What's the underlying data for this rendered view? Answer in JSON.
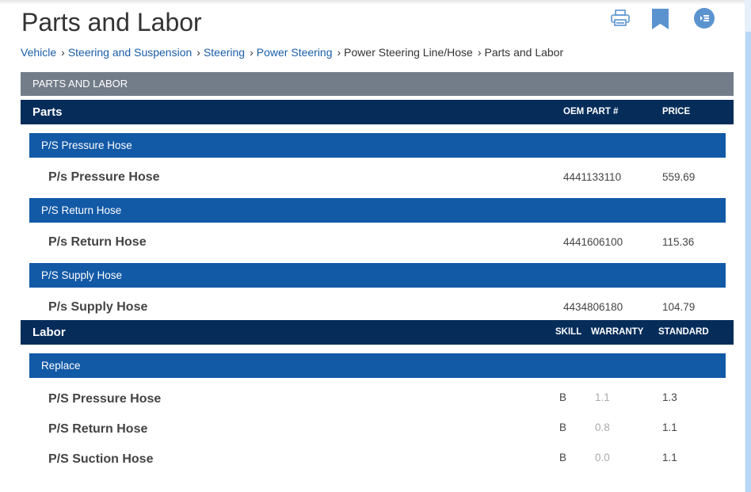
{
  "page": {
    "title": "Parts and Labor"
  },
  "toolbar": {
    "icons": [
      "print-icon",
      "bookmark-icon",
      "toc-icon"
    ],
    "accent": "#5b93cf"
  },
  "breadcrumb": [
    {
      "label": "Vehicle",
      "link": true
    },
    {
      "label": "Steering and Suspension",
      "link": true
    },
    {
      "label": "Steering",
      "link": true
    },
    {
      "label": "Power Steering",
      "link": true
    },
    {
      "label": "Power Steering Line/Hose",
      "link": false
    },
    {
      "label": "Parts and Labor",
      "link": false
    }
  ],
  "section_title": "PARTS AND LABOR",
  "parts": {
    "header": {
      "label": "Parts",
      "oem": "OEM PART #",
      "price": "PRICE"
    },
    "groups": [
      {
        "name": "P/S Pressure Hose",
        "item": "P/s Pressure Hose",
        "oem": "4441133110",
        "price": "559.69"
      },
      {
        "name": "P/S Return Hose",
        "item": "P/s Return Hose",
        "oem": "4441606100",
        "price": "115.36"
      },
      {
        "name": "P/S Supply Hose",
        "item": "P/s Supply Hose",
        "oem": "4434806180",
        "price": "104.79"
      }
    ]
  },
  "labor": {
    "header": {
      "label": "Labor",
      "skill": "SKILL",
      "warranty": "WARRANTY",
      "standard": "STANDARD"
    },
    "group": "Replace",
    "rows": [
      {
        "name": "P/S Pressure Hose",
        "skill": "B",
        "warranty": "1.1",
        "standard": "1.3"
      },
      {
        "name": "P/S Return Hose",
        "skill": "B",
        "warranty": "0.8",
        "standard": "1.1"
      },
      {
        "name": "P/S Suction Hose",
        "skill": "B",
        "warranty": "0.0",
        "standard": "1.1"
      }
    ]
  },
  "colors": {
    "section": "#737d8a",
    "header": "#062d5a",
    "group": "#1259a6",
    "link": "#1a5ea8"
  }
}
